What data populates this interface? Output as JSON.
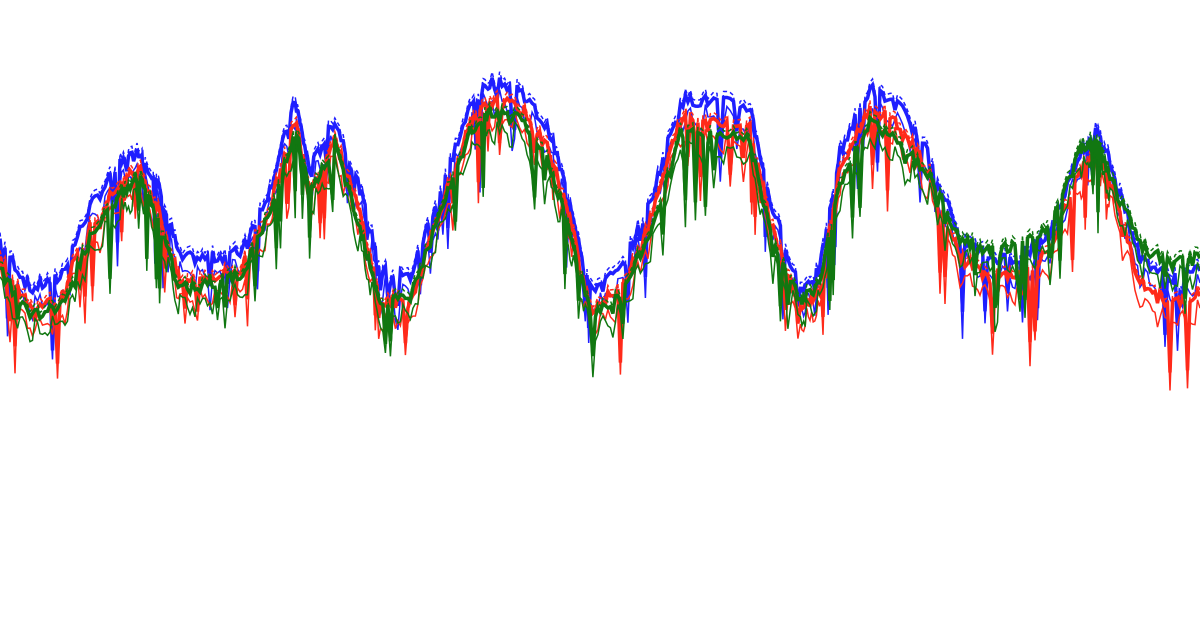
{
  "chart_data": {
    "type": "line",
    "title": "",
    "xlabel": "",
    "ylabel": "",
    "xlim": [
      0,
      100
    ],
    "ylim": [
      0,
      100
    ],
    "grid": false,
    "legend": "none",
    "x": [
      0,
      2.5,
      5,
      7.5,
      10,
      11.7,
      13.3,
      15,
      17.5,
      20,
      22.5,
      24.6,
      25.8,
      27.9,
      30,
      31.7,
      34.2,
      36.7,
      39.2,
      40.8,
      43.3,
      45.8,
      47.5,
      49.2,
      51.7,
      54.2,
      56.7,
      59.2,
      62.5,
      64.2,
      66.7,
      68.3,
      70,
      72.5,
      75,
      77.5,
      80,
      82.5,
      85,
      87.5,
      90,
      91.3,
      92.5,
      95,
      97.5,
      100
    ],
    "series": [
      {
        "color": "#1f1fff",
        "values": [
          62,
          54,
          56,
          67,
          74,
          76,
          70,
          59,
          59,
          60,
          70,
          84,
          73,
          81,
          70,
          57,
          56,
          70,
          83,
          87,
          86,
          79,
          68,
          54,
          57,
          68,
          84,
          84,
          83,
          68,
          54,
          57,
          76,
          86,
          83,
          75,
          62,
          59,
          59,
          63,
          76,
          79,
          75,
          59,
          56,
          57
        ]
      },
      {
        "color": "#ff2a1a",
        "values": [
          59,
          51,
          53,
          64,
          71,
          73,
          66,
          55,
          56,
          57,
          67,
          81,
          70,
          78,
          66,
          52,
          52,
          67,
          80,
          84,
          83,
          76,
          65,
          51,
          54,
          65,
          81,
          81,
          80,
          65,
          51,
          54,
          73,
          83,
          80,
          72,
          59,
          56,
          56,
          60,
          73,
          76,
          71,
          55,
          52,
          53
        ]
      },
      {
        "color": "#117711",
        "values": [
          57,
          50,
          51,
          62,
          69,
          72,
          64,
          54,
          55,
          56,
          66,
          80,
          69,
          77,
          64,
          52,
          53,
          66,
          79,
          82,
          81,
          74,
          63,
          50,
          53,
          63,
          79,
          79,
          78,
          63,
          52,
          55,
          71,
          81,
          77,
          72,
          62,
          60,
          61,
          64,
          76,
          78,
          72,
          61,
          58,
          59
        ]
      }
    ]
  }
}
